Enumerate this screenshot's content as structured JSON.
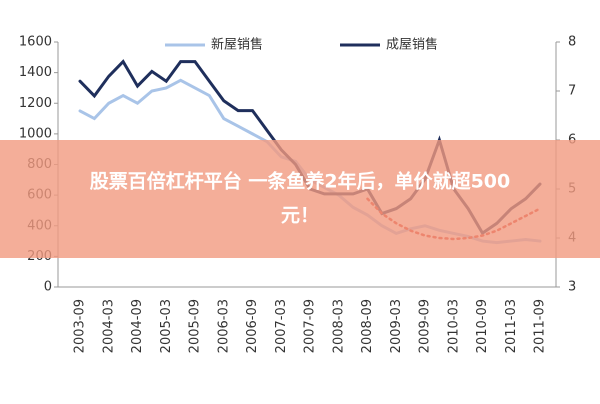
{
  "chart_data": {
    "type": "line",
    "categories": [
      "2003-09",
      null,
      "2004-03",
      null,
      "2004-09",
      null,
      "2005-03",
      null,
      "2005-09",
      null,
      "2006-03",
      null,
      "2006-09",
      null,
      "2007-03",
      null,
      "2007-09",
      null,
      "2008-03",
      null,
      "2008-09",
      null,
      "2009-03",
      null,
      "2009-09",
      null,
      "2010-03",
      null,
      "2010-09",
      null,
      "2011-03",
      null,
      "2011-09"
    ],
    "series": [
      {
        "name": "新屋销售",
        "color": "#a9c4e8",
        "values": [
          1150,
          1100,
          1200,
          1250,
          1200,
          1280,
          1300,
          1350,
          1300,
          1250,
          1100,
          1050,
          1000,
          950,
          850,
          820,
          700,
          650,
          600,
          520,
          470,
          400,
          350,
          380,
          400,
          370,
          350,
          330,
          300,
          290,
          300,
          310,
          300
        ]
      },
      {
        "name": "成屋销售",
        "color": "#1f2f5c",
        "axis": "y2",
        "values": [
          7.2,
          6.9,
          7.3,
          7.6,
          7.1,
          7.4,
          7.2,
          7.6,
          7.6,
          7.2,
          6.8,
          6.6,
          6.6,
          6.2,
          5.8,
          5.5,
          5.0,
          4.9,
          4.9,
          4.9,
          5.0,
          4.5,
          4.6,
          4.8,
          5.2,
          6.0,
          5.0,
          4.6,
          4.1,
          4.3,
          4.6,
          4.8,
          5.1
        ]
      },
      {
        "color": "#d9342b",
        "axis": "y2",
        "dotted": true,
        "values": [
          null,
          null,
          null,
          null,
          null,
          null,
          null,
          null,
          null,
          null,
          null,
          null,
          null,
          null,
          null,
          null,
          null,
          null,
          null,
          null,
          4.8,
          4.5,
          4.3,
          4.15,
          4.05,
          4.0,
          3.98,
          4.0,
          4.05,
          4.15,
          4.3,
          4.45,
          4.6
        ]
      }
    ],
    "ylim": [
      0,
      1600
    ],
    "yticks": [
      0,
      200,
      400,
      600,
      800,
      1000,
      1200,
      1400,
      1600
    ],
    "y2lim": [
      3,
      8
    ],
    "y2ticks": [
      3,
      4,
      5,
      6,
      7,
      8
    ],
    "legend": "top"
  },
  "banner": {
    "lines": [
      "股票百倍杠杆平台 一条鱼养2年后，单价就超500",
      "元！"
    ]
  }
}
